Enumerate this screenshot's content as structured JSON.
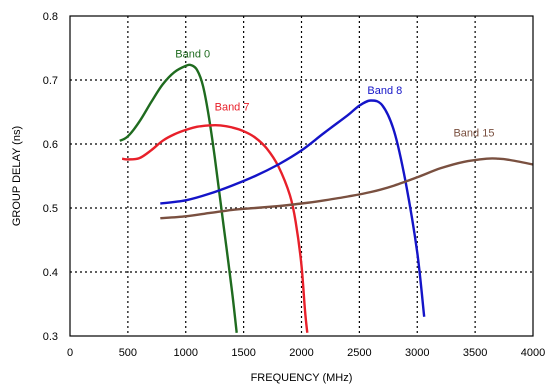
{
  "chart_data": {
    "type": "line",
    "xlabel": "FREQUENCY (MHz)",
    "ylabel": "GROUP DELAY (ns)",
    "xlim": [
      0,
      4000
    ],
    "ylim": [
      0.3,
      0.8
    ],
    "grid": true,
    "grid_style": "dotted",
    "x_ticks": [
      "0",
      "500",
      "1000",
      "1500",
      "2000",
      "2500",
      "3000",
      "3500",
      "4000"
    ],
    "y_ticks": [
      "0.3",
      "0.4",
      "0.5",
      "0.6",
      "0.7",
      "0.8"
    ],
    "series": [
      {
        "name": "Band 0",
        "color": "#1f6b1f",
        "label_at": [
          1060,
          0.735
        ],
        "points": [
          [
            430,
            0.605
          ],
          [
            500,
            0.612
          ],
          [
            600,
            0.635
          ],
          [
            700,
            0.665
          ],
          [
            800,
            0.693
          ],
          [
            900,
            0.712
          ],
          [
            1000,
            0.722
          ],
          [
            1050,
            0.723
          ],
          [
            1100,
            0.715
          ],
          [
            1150,
            0.69
          ],
          [
            1200,
            0.642
          ],
          [
            1250,
            0.58
          ],
          [
            1300,
            0.51
          ],
          [
            1350,
            0.44
          ],
          [
            1400,
            0.37
          ],
          [
            1440,
            0.305
          ]
        ]
      },
      {
        "name": "Band 7",
        "color": "#e8202a",
        "label_at": [
          1400,
          0.652
        ],
        "points": [
          [
            450,
            0.577
          ],
          [
            500,
            0.576
          ],
          [
            600,
            0.578
          ],
          [
            700,
            0.59
          ],
          [
            800,
            0.605
          ],
          [
            900,
            0.615
          ],
          [
            1000,
            0.622
          ],
          [
            1100,
            0.627
          ],
          [
            1200,
            0.629
          ],
          [
            1300,
            0.629
          ],
          [
            1400,
            0.626
          ],
          [
            1500,
            0.62
          ],
          [
            1600,
            0.61
          ],
          [
            1700,
            0.593
          ],
          [
            1800,
            0.565
          ],
          [
            1900,
            0.52
          ],
          [
            1950,
            0.478
          ],
          [
            2000,
            0.41
          ],
          [
            2030,
            0.34
          ],
          [
            2050,
            0.305
          ]
        ]
      },
      {
        "name": "Band 8",
        "color": "#1414c8",
        "label_at": [
          2720,
          0.678
        ],
        "points": [
          [
            780,
            0.507
          ],
          [
            1000,
            0.512
          ],
          [
            1200,
            0.522
          ],
          [
            1400,
            0.535
          ],
          [
            1600,
            0.55
          ],
          [
            1800,
            0.568
          ],
          [
            2000,
            0.59
          ],
          [
            2200,
            0.618
          ],
          [
            2400,
            0.645
          ],
          [
            2500,
            0.66
          ],
          [
            2600,
            0.668
          ],
          [
            2700,
            0.66
          ],
          [
            2800,
            0.62
          ],
          [
            2900,
            0.54
          ],
          [
            3000,
            0.43
          ],
          [
            3060,
            0.33
          ]
        ]
      },
      {
        "name": "Band 15",
        "color": "#7a5040",
        "label_at": [
          3490,
          0.612
        ],
        "points": [
          [
            780,
            0.484
          ],
          [
            1000,
            0.487
          ],
          [
            1200,
            0.492
          ],
          [
            1400,
            0.497
          ],
          [
            1600,
            0.5
          ],
          [
            1800,
            0.503
          ],
          [
            2000,
            0.507
          ],
          [
            2200,
            0.512
          ],
          [
            2400,
            0.518
          ],
          [
            2600,
            0.525
          ],
          [
            2800,
            0.535
          ],
          [
            3000,
            0.548
          ],
          [
            3200,
            0.562
          ],
          [
            3400,
            0.572
          ],
          [
            3600,
            0.577
          ],
          [
            3700,
            0.577
          ],
          [
            3800,
            0.575
          ],
          [
            4000,
            0.568
          ]
        ]
      }
    ]
  }
}
